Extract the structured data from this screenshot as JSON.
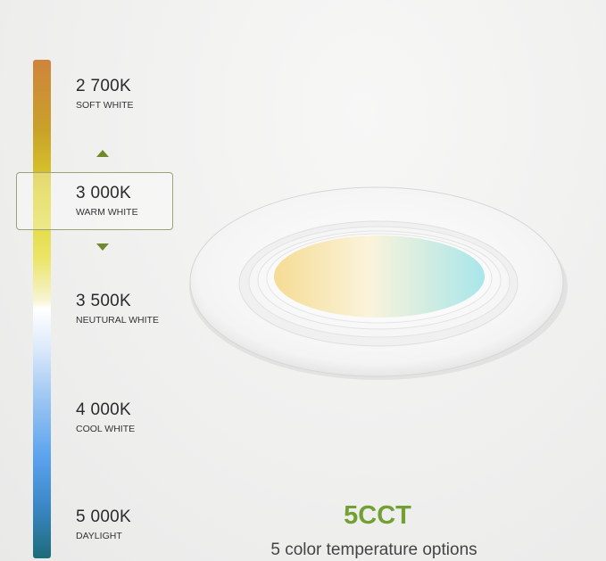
{
  "scale": [
    {
      "kelvin": "2 700K",
      "name": "SOFT WHITE"
    },
    {
      "kelvin": "3 000K",
      "name": "WARM WHITE"
    },
    {
      "kelvin": "3 500K",
      "name": "NEUTURAL WHITE"
    },
    {
      "kelvin": "4 000K",
      "name": "COOL WHITE"
    },
    {
      "kelvin": "5 000K",
      "name": "DAYLIGHT"
    }
  ],
  "selected_index": 1,
  "headline": "5CCT",
  "subtitle": "5 color temperature options",
  "colors": {
    "accent": "#73a033",
    "arrow": "#6e8a2a",
    "warm": "#cf843c",
    "cool": "#1c6b7a"
  },
  "icons": [
    "arrow-up-icon",
    "arrow-down-icon"
  ]
}
